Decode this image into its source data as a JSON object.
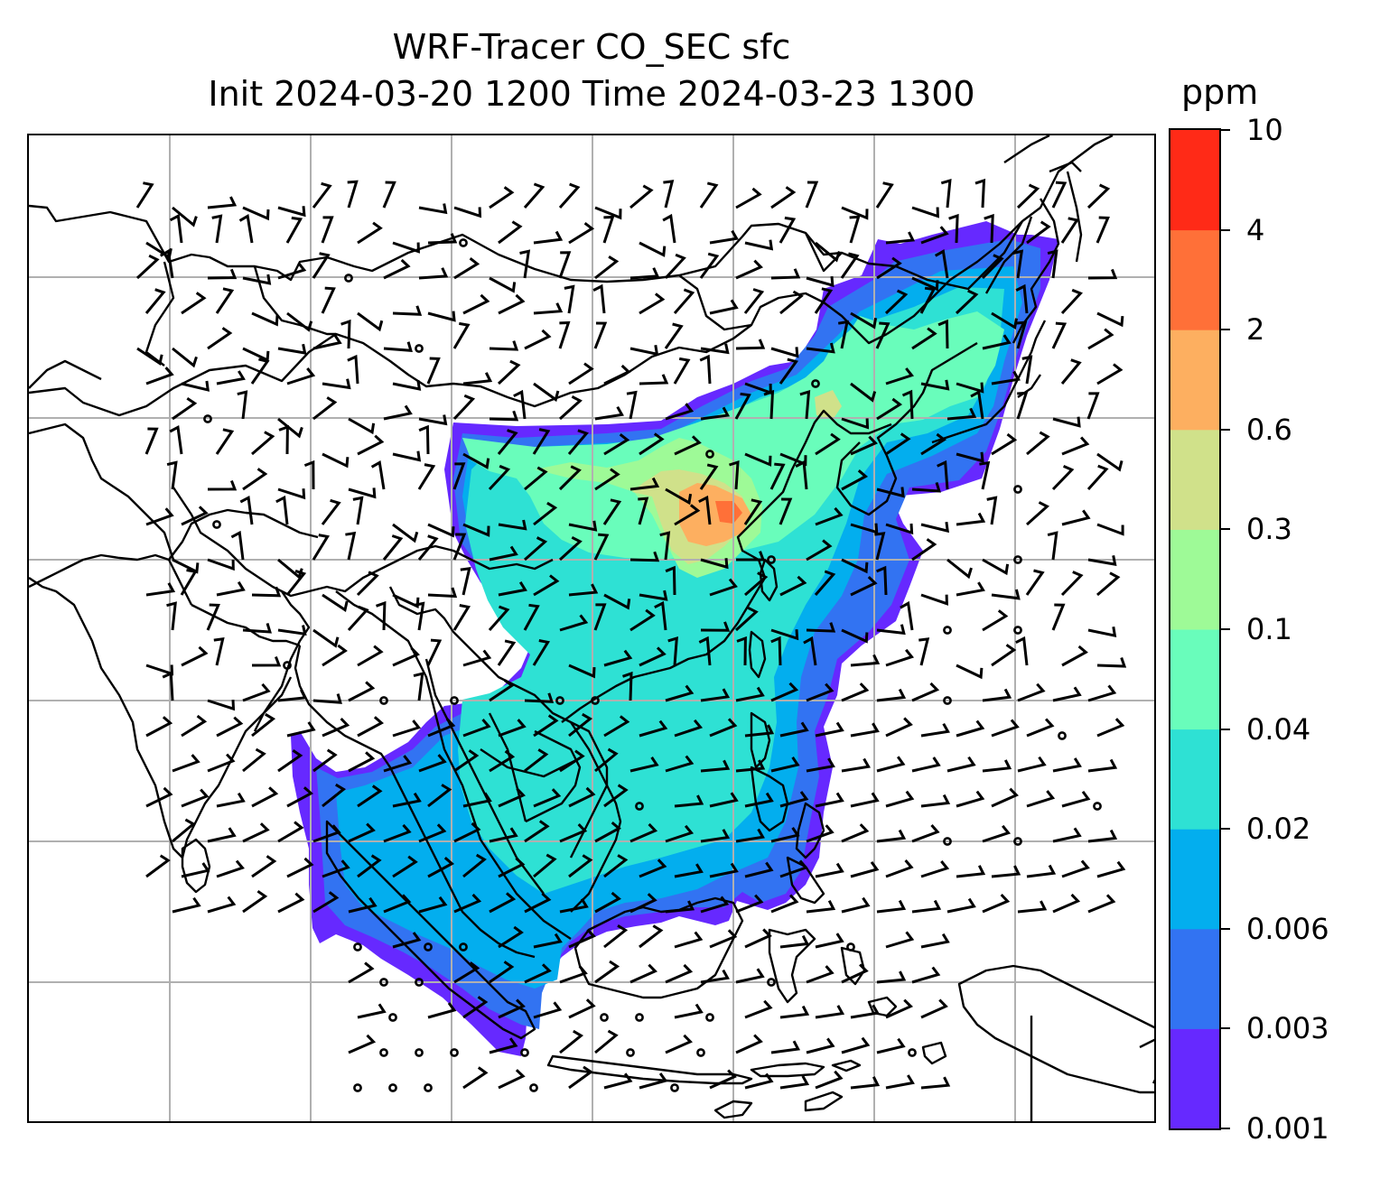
{
  "title": {
    "line1": "WRF-Tracer CO_SEC sfc",
    "line2": "Init 2024-03-20 1200 Time 2024-03-23 1300"
  },
  "colorbar": {
    "units": "ppm",
    "levels": [
      "0.001",
      "0.003",
      "0.006",
      "0.02",
      "0.04",
      "0.1",
      "0.3",
      "0.6",
      "2",
      "4",
      "10"
    ],
    "colors": [
      "#6629ff",
      "#3273f2",
      "#03aeee",
      "#2ee1d4",
      "#69fdbb",
      "#9efa97",
      "#d0e18a",
      "#fdaf60",
      "#ff7038",
      "#ff2a17"
    ]
  },
  "map": {
    "field": "CO_SEC",
    "level": "sfc",
    "graticule": "on",
    "overlay": "wind barbs"
  }
}
